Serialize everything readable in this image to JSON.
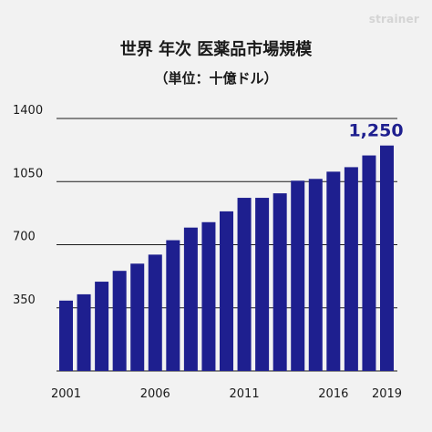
{
  "watermark": "strainer",
  "chart_data": {
    "type": "bar",
    "title": "世界 年次 医薬品市場規模",
    "subtitle": "（単位：十億ドル）",
    "xlabel": "",
    "ylabel": "",
    "categories": [
      "2001",
      "2002",
      "2003",
      "2004",
      "2005",
      "2006",
      "2007",
      "2008",
      "2009",
      "2010",
      "2011",
      "2012",
      "2013",
      "2014",
      "2015",
      "2016",
      "2017",
      "2018",
      "2019"
    ],
    "x_tick_labels": [
      "2001",
      "2006",
      "2011",
      "2016",
      "2019"
    ],
    "values": [
      390,
      425,
      495,
      555,
      595,
      645,
      725,
      795,
      825,
      885,
      960,
      960,
      985,
      1055,
      1065,
      1105,
      1130,
      1195,
      1250
    ],
    "ylim": [
      0,
      1400
    ],
    "y_ticks": [
      350,
      700,
      1050,
      1400
    ],
    "y_tick_labels": [
      "350",
      "700",
      "1050",
      "1400"
    ],
    "grid": "horizontal",
    "legend": "none",
    "annotation": "1,250",
    "bar_color": "#1e1f8f",
    "annotation_color": "#1e1f8f",
    "grid_color": "#1a1a1a"
  }
}
